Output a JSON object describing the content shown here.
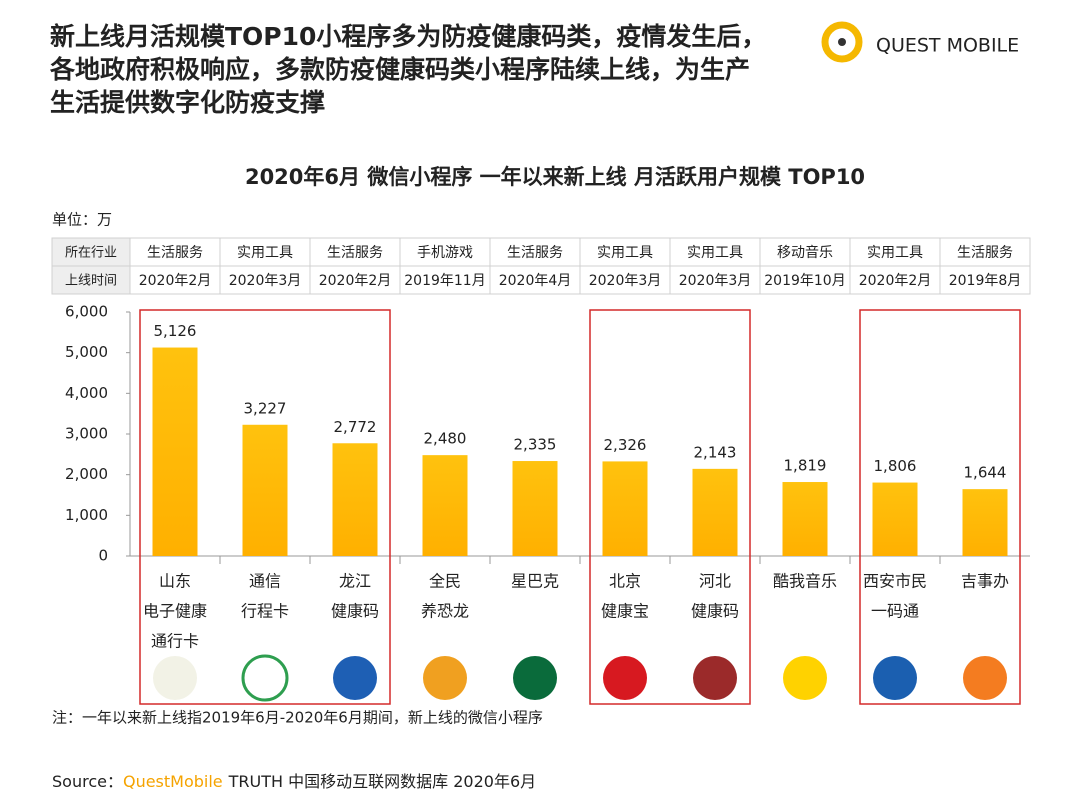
{
  "header": {
    "title": [
      "新上线月活规模TOP10小程序多为防疫健康码类，疫情发生后，",
      "各地政府积极响应，多款防疫健康码类小程序陆续上线，为生产",
      "生活提供数字化防疫支撑"
    ],
    "logo": "QUEST MOBILE"
  },
  "chart_data": {
    "type": "bar",
    "title": "2020年6月 微信小程序 一年以来新上线 月活跃用户规模 TOP10",
    "unit": "单位：万",
    "categories": [
      [
        "山东",
        "电子健康",
        "通行卡"
      ],
      [
        "通信",
        "行程卡"
      ],
      [
        "龙江",
        "健康码"
      ],
      [
        "全民",
        "养恐龙"
      ],
      [
        "星巴克"
      ],
      [
        "北京",
        "健康宝"
      ],
      [
        "河北",
        "健康码"
      ],
      [
        "酷我音乐"
      ],
      [
        "西安市民",
        "一码通"
      ],
      [
        "吉事办"
      ]
    ],
    "table": {
      "row_headers": [
        "所在行业",
        "上线时间"
      ],
      "rows": [
        [
          "生活服务",
          "实用工具",
          "生活服务",
          "手机游戏",
          "生活服务",
          "实用工具",
          "实用工具",
          "移动音乐",
          "实用工具",
          "生活服务"
        ],
        [
          "2020年2月",
          "2020年3月",
          "2020年2月",
          "2019年11月",
          "2020年4月",
          "2020年3月",
          "2020年3月",
          "2019年10月",
          "2020年2月",
          "2019年8月"
        ]
      ]
    },
    "values": [
      5126,
      3227,
      2772,
      2480,
      2335,
      2326,
      2143,
      1819,
      1806,
      1644
    ],
    "value_labels": [
      "5,126",
      "3,227",
      "2,772",
      "2,480",
      "2,335",
      "2,326",
      "2,143",
      "1,819",
      "1,806",
      "1,644"
    ],
    "color": "#ffc20e",
    "ylim": [
      0,
      6000
    ],
    "yticks": [
      0,
      {
        "value": 1000,
        "label": "1,000"
      },
      {
        "value": 2000,
        "label": "2,000"
      },
      {
        "value": 3000,
        "label": "3,000"
      },
      {
        "value": 4000,
        "label": "4,000"
      },
      {
        "value": 5000,
        "label": "5,000"
      },
      {
        "value": 6000,
        "label": "6,000"
      }
    ],
    "highlight": [
      [
        0,
        2
      ],
      [
        5,
        6
      ],
      [
        8,
        9
      ]
    ]
  },
  "note": "注：一年以来新上线指2019年6月-2020年6月期间，新上线的微信小程序",
  "source": {
    "label": "Source：",
    "brand": "QuestMobile",
    "rest": "TRUTH 中国移动互联网数据库 2020年6月"
  }
}
